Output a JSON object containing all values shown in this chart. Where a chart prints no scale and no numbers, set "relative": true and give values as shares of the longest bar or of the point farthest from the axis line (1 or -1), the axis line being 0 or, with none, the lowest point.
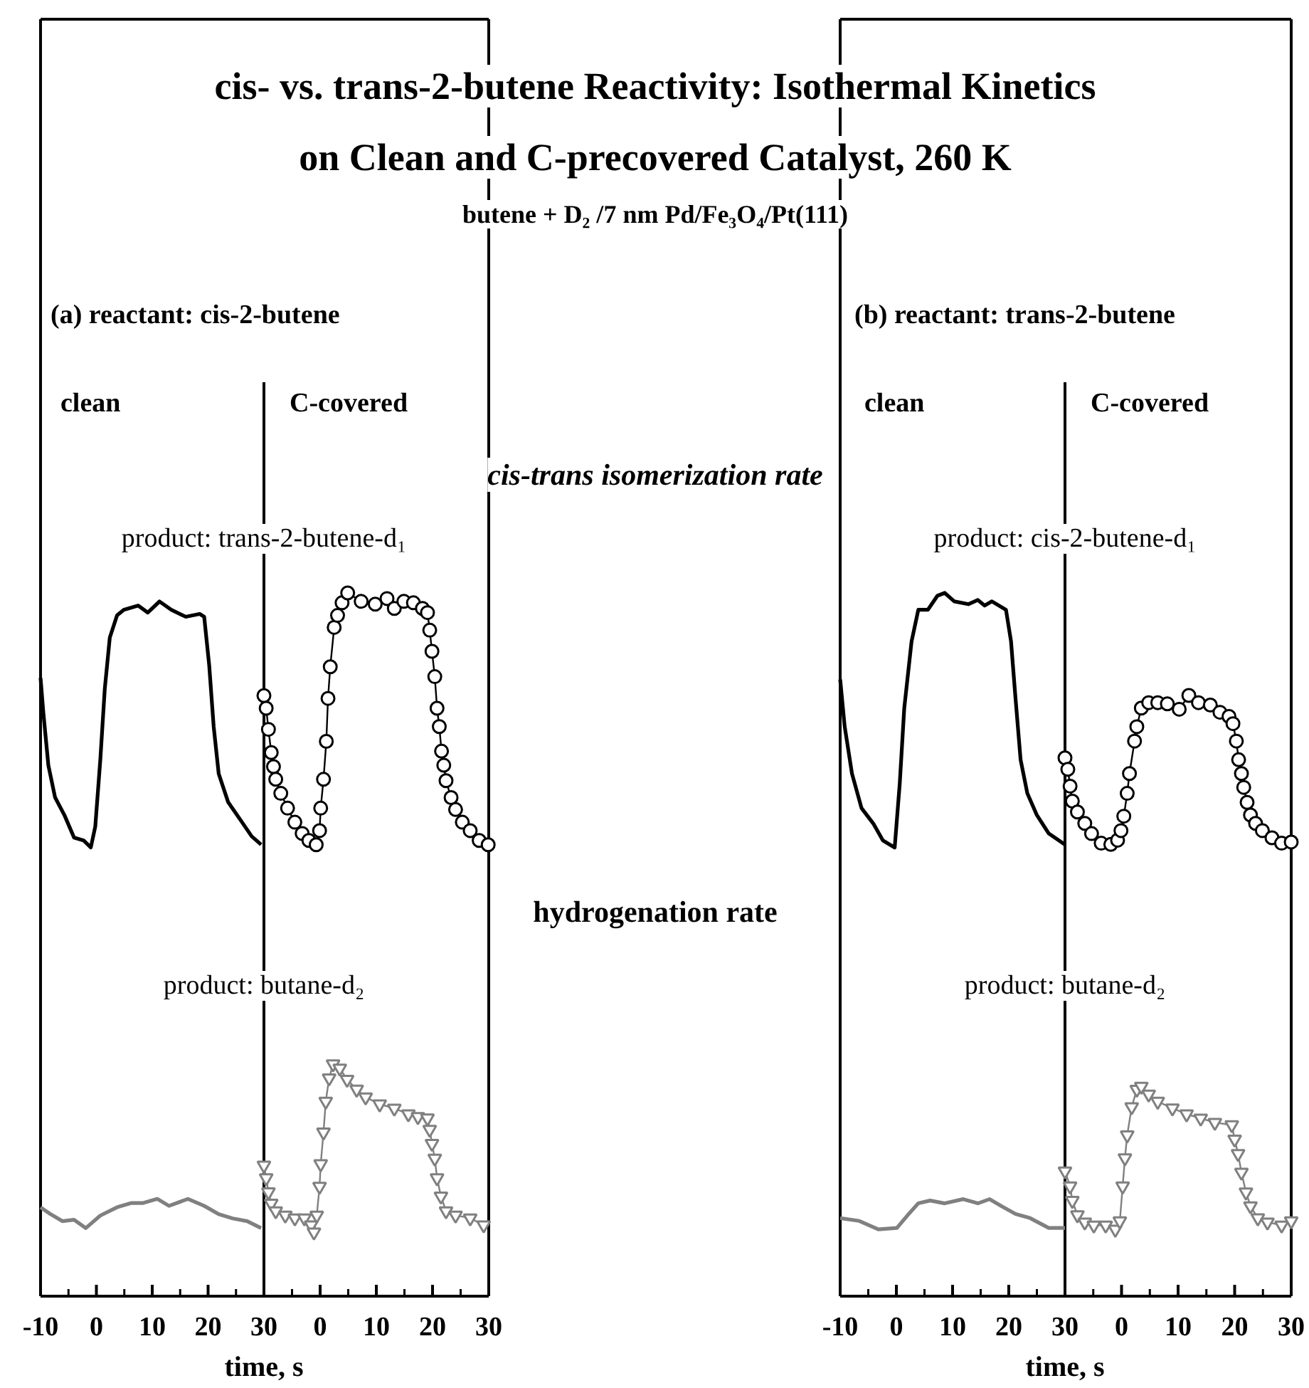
{
  "chart_data": [
    {
      "type": "line",
      "xlabel": "time, s",
      "relative": true,
      "annotations": [
        "(a) reactant: cis-2-butene",
        "clean",
        "cis-trans isomerization rate",
        "product: trans-2-butene-d₁",
        "hydrogenation rate",
        "product: butane-d₂"
      ],
      "xlim": [
        -10,
        30
      ],
      "xticks": [
        -10,
        0,
        10,
        20,
        30
      ],
      "series": [
        {
          "color": "#000000",
          "x": [
            -10,
            -9.5,
            -8.6,
            -7.4,
            -5.7,
            -4.0,
            -2.3,
            -1.0,
            -0.2,
            0.7,
            1.5,
            2.4,
            3.7,
            4.9,
            7.5,
            9.2,
            11.3,
            13.4,
            16.0,
            18.5,
            19.3,
            20.2,
            21.0,
            21.9,
            23.6,
            26.1,
            27.8,
            29.5
          ],
          "values": [
            0.89,
            0.84,
            0.764,
            0.718,
            0.692,
            0.66,
            0.656,
            0.646,
            0.676,
            0.772,
            0.874,
            0.948,
            0.98,
            0.988,
            0.994,
            0.984,
            1.0,
            0.988,
            0.978,
            0.982,
            0.978,
            0.908,
            0.82,
            0.752,
            0.711,
            0.682,
            0.662,
            0.65
          ]
        },
        {
          "color": "#808080",
          "x": [
            -10,
            -8.2,
            -6.1,
            -4.0,
            -1.9,
            0.7,
            3.7,
            6.2,
            8.3,
            10.9,
            13.0,
            16.4,
            19.3,
            21.9,
            24.4,
            27.0,
            29.5
          ],
          "values": [
            0.128,
            0.118,
            0.108,
            0.11,
            0.098,
            0.116,
            0.128,
            0.134,
            0.134,
            0.14,
            0.13,
            0.14,
            0.13,
            0.118,
            0.112,
            0.108,
            0.098
          ]
        }
      ]
    },
    {
      "type": "line",
      "title": "cis- vs. trans-2-butene Reactivity: Isothermal Kinetics on Clean and C-precovered Catalyst, 260 K",
      "subtitle": "butene + D₂ /7 nm Pd/Fe₃O₄/Pt(111)",
      "relative": true,
      "annotations": [
        "C-covered"
      ],
      "xlim": [
        -10,
        30
      ],
      "xticks": [
        {
          "value": -10,
          "label": null
        },
        0,
        10,
        20,
        30
      ],
      "series": [
        {
          "color": "#000000",
          "marker": "circle",
          "x": [
            -10.0,
            -9.6,
            -9.2,
            -8.7,
            -8.3,
            -7.9,
            -7.0,
            -5.8,
            -4.5,
            -3.2,
            -2.0,
            -0.7,
            -0.1,
            0.1,
            0.6,
            1.1,
            1.4,
            1.8,
            2.5,
            3.1,
            3.9,
            4.9,
            7.3,
            9.8,
            11.9,
            13.2,
            14.9,
            16.6,
            18.2,
            19.1,
            19.5,
            19.9,
            20.4,
            20.8,
            21.2,
            21.6,
            22.0,
            22.4,
            23.3,
            24.1,
            25.3,
            26.7,
            28.3,
            29.9
          ],
          "values": [
            0.854,
            0.836,
            0.806,
            0.773,
            0.753,
            0.735,
            0.715,
            0.694,
            0.674,
            0.658,
            0.648,
            0.642,
            0.662,
            0.694,
            0.735,
            0.789,
            0.85,
            0.895,
            0.951,
            0.968,
            0.986,
            1.0,
            0.988,
            0.984,
            0.992,
            0.978,
            0.988,
            0.986,
            0.978,
            0.972,
            0.947,
            0.917,
            0.881,
            0.836,
            0.81,
            0.775,
            0.755,
            0.733,
            0.709,
            0.692,
            0.674,
            0.662,
            0.648,
            0.642
          ]
        },
        {
          "color": "#808080",
          "marker": "triangle",
          "x": [
            -10,
            -9.6,
            -9.2,
            -8.7,
            -7.9,
            -6.2,
            -4.5,
            -2.8,
            -1.6,
            -1.1,
            -0.6,
            -0.1,
            0.1,
            0.6,
            1.0,
            1.6,
            2.3,
            3.5,
            4.8,
            6.5,
            8.1,
            10.6,
            13.2,
            15.7,
            17.4,
            19.1,
            19.5,
            19.9,
            20.4,
            20.8,
            21.5,
            22.4,
            24.1,
            26.7,
            29.1
          ],
          "values": [
            0.186,
            0.168,
            0.148,
            0.132,
            0.121,
            0.115,
            0.111,
            0.111,
            0.101,
            0.091,
            0.115,
            0.156,
            0.188,
            0.233,
            0.277,
            0.31,
            0.33,
            0.324,
            0.308,
            0.294,
            0.283,
            0.273,
            0.267,
            0.259,
            0.255,
            0.253,
            0.237,
            0.217,
            0.196,
            0.168,
            0.142,
            0.121,
            0.115,
            0.111,
            0.101
          ]
        }
      ]
    },
    {
      "type": "line",
      "xlabel": "time, s",
      "relative": true,
      "annotations": [
        "(b) reactant: trans-2-butene",
        "clean",
        "product: cis-2-butene-d₁",
        "product: butane-d₂"
      ],
      "xlim": [
        -10,
        30
      ],
      "xticks": [
        -10,
        0,
        10,
        20,
        30
      ],
      "series": [
        {
          "color": "#000000",
          "x": [
            -10,
            -9.2,
            -7.9,
            -6.2,
            -4.1,
            -2.4,
            -0.3,
            0.6,
            1.4,
            2.7,
            3.9,
            5.6,
            7.3,
            8.6,
            10.3,
            12.8,
            14.5,
            15.7,
            17.0,
            19.5,
            20.4,
            21.2,
            22.1,
            23.3,
            25.0,
            27.1,
            30
          ],
          "values": [
            0.877,
            0.81,
            0.743,
            0.694,
            0.672,
            0.648,
            0.638,
            0.729,
            0.836,
            0.931,
            0.976,
            0.976,
            0.996,
            1.0,
            0.988,
            0.984,
            0.99,
            0.982,
            0.988,
            0.976,
            0.931,
            0.85,
            0.763,
            0.715,
            0.684,
            0.658,
            0.642
          ]
        },
        {
          "color": "#808080",
          "x": [
            -10,
            -6.6,
            -3.2,
            0.1,
            2.2,
            3.9,
            6.0,
            8.6,
            11.9,
            14.5,
            16.6,
            18.7,
            21.2,
            23.8,
            27.1,
            30
          ],
          "values": [
            0.111,
            0.107,
            0.095,
            0.097,
            0.117,
            0.132,
            0.136,
            0.132,
            0.138,
            0.132,
            0.138,
            0.128,
            0.117,
            0.111,
            0.097,
            0.097
          ]
        }
      ]
    },
    {
      "type": "line",
      "relative": true,
      "annotations": [
        "C-covered"
      ],
      "xlim": [
        -10,
        30
      ],
      "xticks": [
        {
          "value": -10,
          "label": null
        },
        0,
        10,
        20,
        30
      ],
      "series": [
        {
          "color": "#000000",
          "marker": "circle",
          "x": [
            -10,
            -9.5,
            -9.1,
            -8.7,
            -7.8,
            -6.5,
            -5.3,
            -3.6,
            -1.9,
            -0.7,
            -0.1,
            0.4,
            1.0,
            1.4,
            2.3,
            2.7,
            3.5,
            4.8,
            6.4,
            8.1,
            10.2,
            11.9,
            13.6,
            15.7,
            17.4,
            19.0,
            19.7,
            20.3,
            20.7,
            21.2,
            21.6,
            22.2,
            22.8,
            23.7,
            24.9,
            26.6,
            28.3,
            30
          ],
          "values": [
            0.896,
            0.877,
            0.849,
            0.824,
            0.806,
            0.787,
            0.77,
            0.754,
            0.752,
            0.759,
            0.775,
            0.799,
            0.837,
            0.87,
            0.924,
            0.948,
            0.979,
            0.988,
            0.988,
            0.986,
            0.977,
            1.0,
            0.988,
            0.984,
            0.972,
            0.965,
            0.953,
            0.924,
            0.893,
            0.87,
            0.847,
            0.822,
            0.801,
            0.787,
            0.775,
            0.763,
            0.754,
            0.756
          ]
        },
        {
          "color": "#808080",
          "marker": "triangle",
          "x": [
            -10,
            -9.1,
            -8.7,
            -7.8,
            -6.5,
            -4.9,
            -2.8,
            -1.1,
            -0.3,
            0.2,
            0.6,
            1.0,
            1.8,
            2.7,
            3.5,
            4.8,
            6.4,
            9.0,
            11.5,
            14.0,
            16.5,
            19.5,
            20.0,
            20.6,
            21.2,
            22.0,
            22.8,
            24.1,
            25.8,
            28.3,
            30
          ],
          "values": [
            0.208,
            0.183,
            0.159,
            0.135,
            0.123,
            0.118,
            0.118,
            0.111,
            0.125,
            0.183,
            0.23,
            0.268,
            0.315,
            0.344,
            0.349,
            0.336,
            0.324,
            0.313,
            0.303,
            0.296,
            0.289,
            0.285,
            0.261,
            0.237,
            0.206,
            0.173,
            0.15,
            0.13,
            0.123,
            0.118,
            0.125
          ]
        }
      ]
    }
  ]
}
